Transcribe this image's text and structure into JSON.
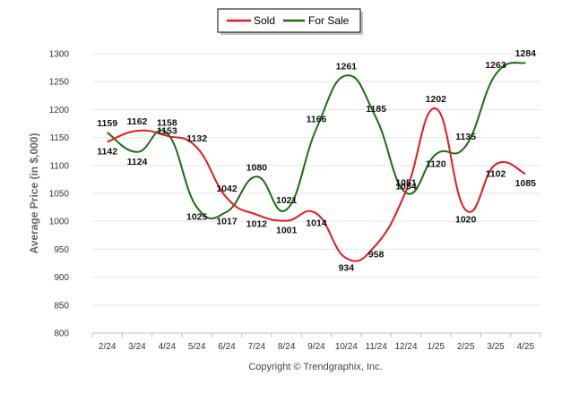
{
  "chart_data": {
    "type": "line",
    "title": "",
    "ylabel": "Average Price (in $,000)",
    "xlabel": "",
    "categories": [
      "2/24",
      "3/24",
      "4/24",
      "5/24",
      "6/24",
      "7/24",
      "8/24",
      "9/24",
      "10/24",
      "11/24",
      "12/24",
      "1/25",
      "2/25",
      "3/25",
      "4/25"
    ],
    "ylim": [
      800,
      1300
    ],
    "yticks": [
      800,
      850,
      900,
      950,
      1000,
      1050,
      1100,
      1150,
      1200,
      1250,
      1300
    ],
    "grid": true,
    "legend_position": "top-center",
    "smooth": true,
    "series": [
      {
        "name": "Sold",
        "color": "#e31a1c",
        "values": [
          1142,
          1162,
          1153,
          1132,
          1042,
          1012,
          1001,
          1014,
          934,
          958,
          1054,
          1202,
          1020,
          1102,
          1085
        ]
      },
      {
        "name": "For Sale",
        "color": "#1a6e12",
        "values": [
          1159,
          1124,
          1158,
          1025,
          1017,
          1080,
          1021,
          1166,
          1261,
          1185,
          1051,
          1120,
          1135,
          1263,
          1284
        ]
      }
    ]
  },
  "footer": {
    "copyright": "Copyright © Trendgraphix, Inc."
  }
}
